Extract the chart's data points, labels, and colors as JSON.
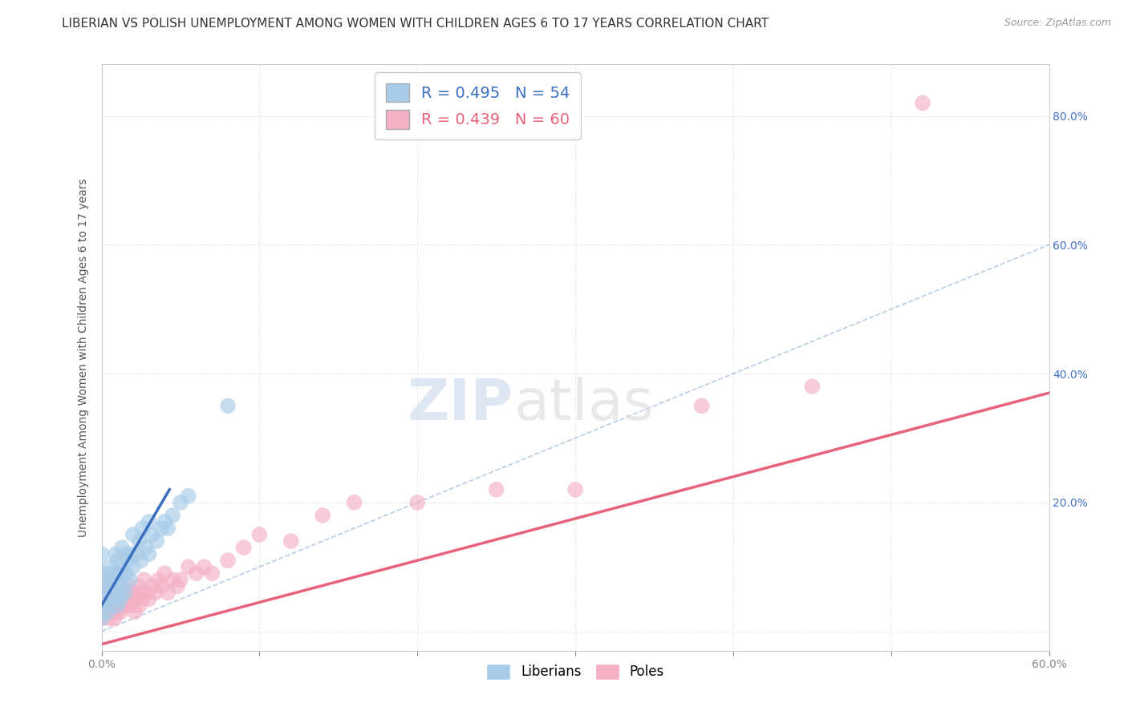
{
  "title": "LIBERIAN VS POLISH UNEMPLOYMENT AMONG WOMEN WITH CHILDREN AGES 6 TO 17 YEARS CORRELATION CHART",
  "source": "Source: ZipAtlas.com",
  "ylabel": "Unemployment Among Women with Children Ages 6 to 17 years",
  "xlim": [
    0.0,
    0.6
  ],
  "ylim": [
    -0.03,
    0.88
  ],
  "xticks": [
    0.0,
    0.1,
    0.2,
    0.3,
    0.4,
    0.5,
    0.6
  ],
  "xticklabels": [
    "0.0%",
    "",
    "",
    "",
    "",
    "",
    "60.0%"
  ],
  "ytick_positions": [
    0.0,
    0.2,
    0.4,
    0.6,
    0.8
  ],
  "yticklabels_right": [
    "",
    "20.0%",
    "40.0%",
    "60.0%",
    "80.0%"
  ],
  "liberian_color": "#a8cce8",
  "polish_color": "#f4b0c5",
  "liberian_line_color": "#3a6fbf",
  "polish_line_color": "#e8637a",
  "diagonal_color": "#a8c0e0",
  "R_liberian": 0.495,
  "N_liberian": 54,
  "R_polish": 0.439,
  "N_polish": 60,
  "liberian_x": [
    0.0,
    0.0,
    0.0,
    0.0,
    0.0,
    0.0,
    0.004,
    0.004,
    0.004,
    0.005,
    0.005,
    0.005,
    0.006,
    0.006,
    0.007,
    0.007,
    0.008,
    0.008,
    0.009,
    0.009,
    0.01,
    0.01,
    0.01,
    0.011,
    0.011,
    0.012,
    0.012,
    0.013,
    0.013,
    0.014,
    0.015,
    0.015,
    0.016,
    0.017,
    0.018,
    0.019,
    0.02,
    0.02,
    0.022,
    0.024,
    0.025,
    0.026,
    0.028,
    0.03,
    0.03,
    0.032,
    0.035,
    0.038,
    0.04,
    0.042,
    0.045,
    0.05,
    0.055,
    0.08
  ],
  "liberian_y": [
    0.02,
    0.03,
    0.05,
    0.07,
    0.09,
    0.12,
    0.03,
    0.06,
    0.09,
    0.04,
    0.07,
    0.1,
    0.05,
    0.08,
    0.06,
    0.09,
    0.05,
    0.08,
    0.07,
    0.12,
    0.04,
    0.08,
    0.11,
    0.06,
    0.09,
    0.05,
    0.1,
    0.07,
    0.13,
    0.09,
    0.06,
    0.12,
    0.09,
    0.11,
    0.08,
    0.12,
    0.1,
    0.15,
    0.12,
    0.14,
    0.11,
    0.16,
    0.13,
    0.12,
    0.17,
    0.15,
    0.14,
    0.16,
    0.17,
    0.16,
    0.18,
    0.2,
    0.21,
    0.35
  ],
  "polish_x": [
    0.0,
    0.0,
    0.0,
    0.003,
    0.004,
    0.005,
    0.005,
    0.006,
    0.007,
    0.008,
    0.008,
    0.009,
    0.009,
    0.01,
    0.01,
    0.011,
    0.012,
    0.012,
    0.013,
    0.014,
    0.015,
    0.016,
    0.017,
    0.018,
    0.019,
    0.02,
    0.021,
    0.022,
    0.023,
    0.024,
    0.025,
    0.026,
    0.027,
    0.028,
    0.03,
    0.032,
    0.034,
    0.036,
    0.038,
    0.04,
    0.042,
    0.045,
    0.048,
    0.05,
    0.055,
    0.06,
    0.065,
    0.07,
    0.08,
    0.09,
    0.1,
    0.12,
    0.14,
    0.16,
    0.2,
    0.25,
    0.3,
    0.38,
    0.45,
    0.52
  ],
  "polish_y": [
    0.02,
    0.04,
    0.06,
    0.03,
    0.05,
    0.02,
    0.06,
    0.04,
    0.03,
    0.02,
    0.05,
    0.04,
    0.07,
    0.03,
    0.06,
    0.05,
    0.03,
    0.07,
    0.04,
    0.06,
    0.05,
    0.04,
    0.07,
    0.05,
    0.04,
    0.06,
    0.03,
    0.05,
    0.07,
    0.04,
    0.06,
    0.05,
    0.08,
    0.06,
    0.05,
    0.07,
    0.06,
    0.08,
    0.07,
    0.09,
    0.06,
    0.08,
    0.07,
    0.08,
    0.1,
    0.09,
    0.1,
    0.09,
    0.11,
    0.13,
    0.15,
    0.14,
    0.18,
    0.2,
    0.2,
    0.22,
    0.22,
    0.35,
    0.38,
    0.82
  ],
  "watermark_zip": "ZIP",
  "watermark_atlas": "atlas",
  "background_color": "#ffffff",
  "grid_color": "#d8d8d8",
  "title_fontsize": 11,
  "axis_label_fontsize": 10,
  "tick_fontsize": 10,
  "liberian_line_x": [
    0.0,
    0.043
  ],
  "liberian_line_y": [
    0.04,
    0.22
  ],
  "polish_line_x": [
    0.0,
    0.6
  ],
  "polish_line_y": [
    -0.02,
    0.37
  ]
}
